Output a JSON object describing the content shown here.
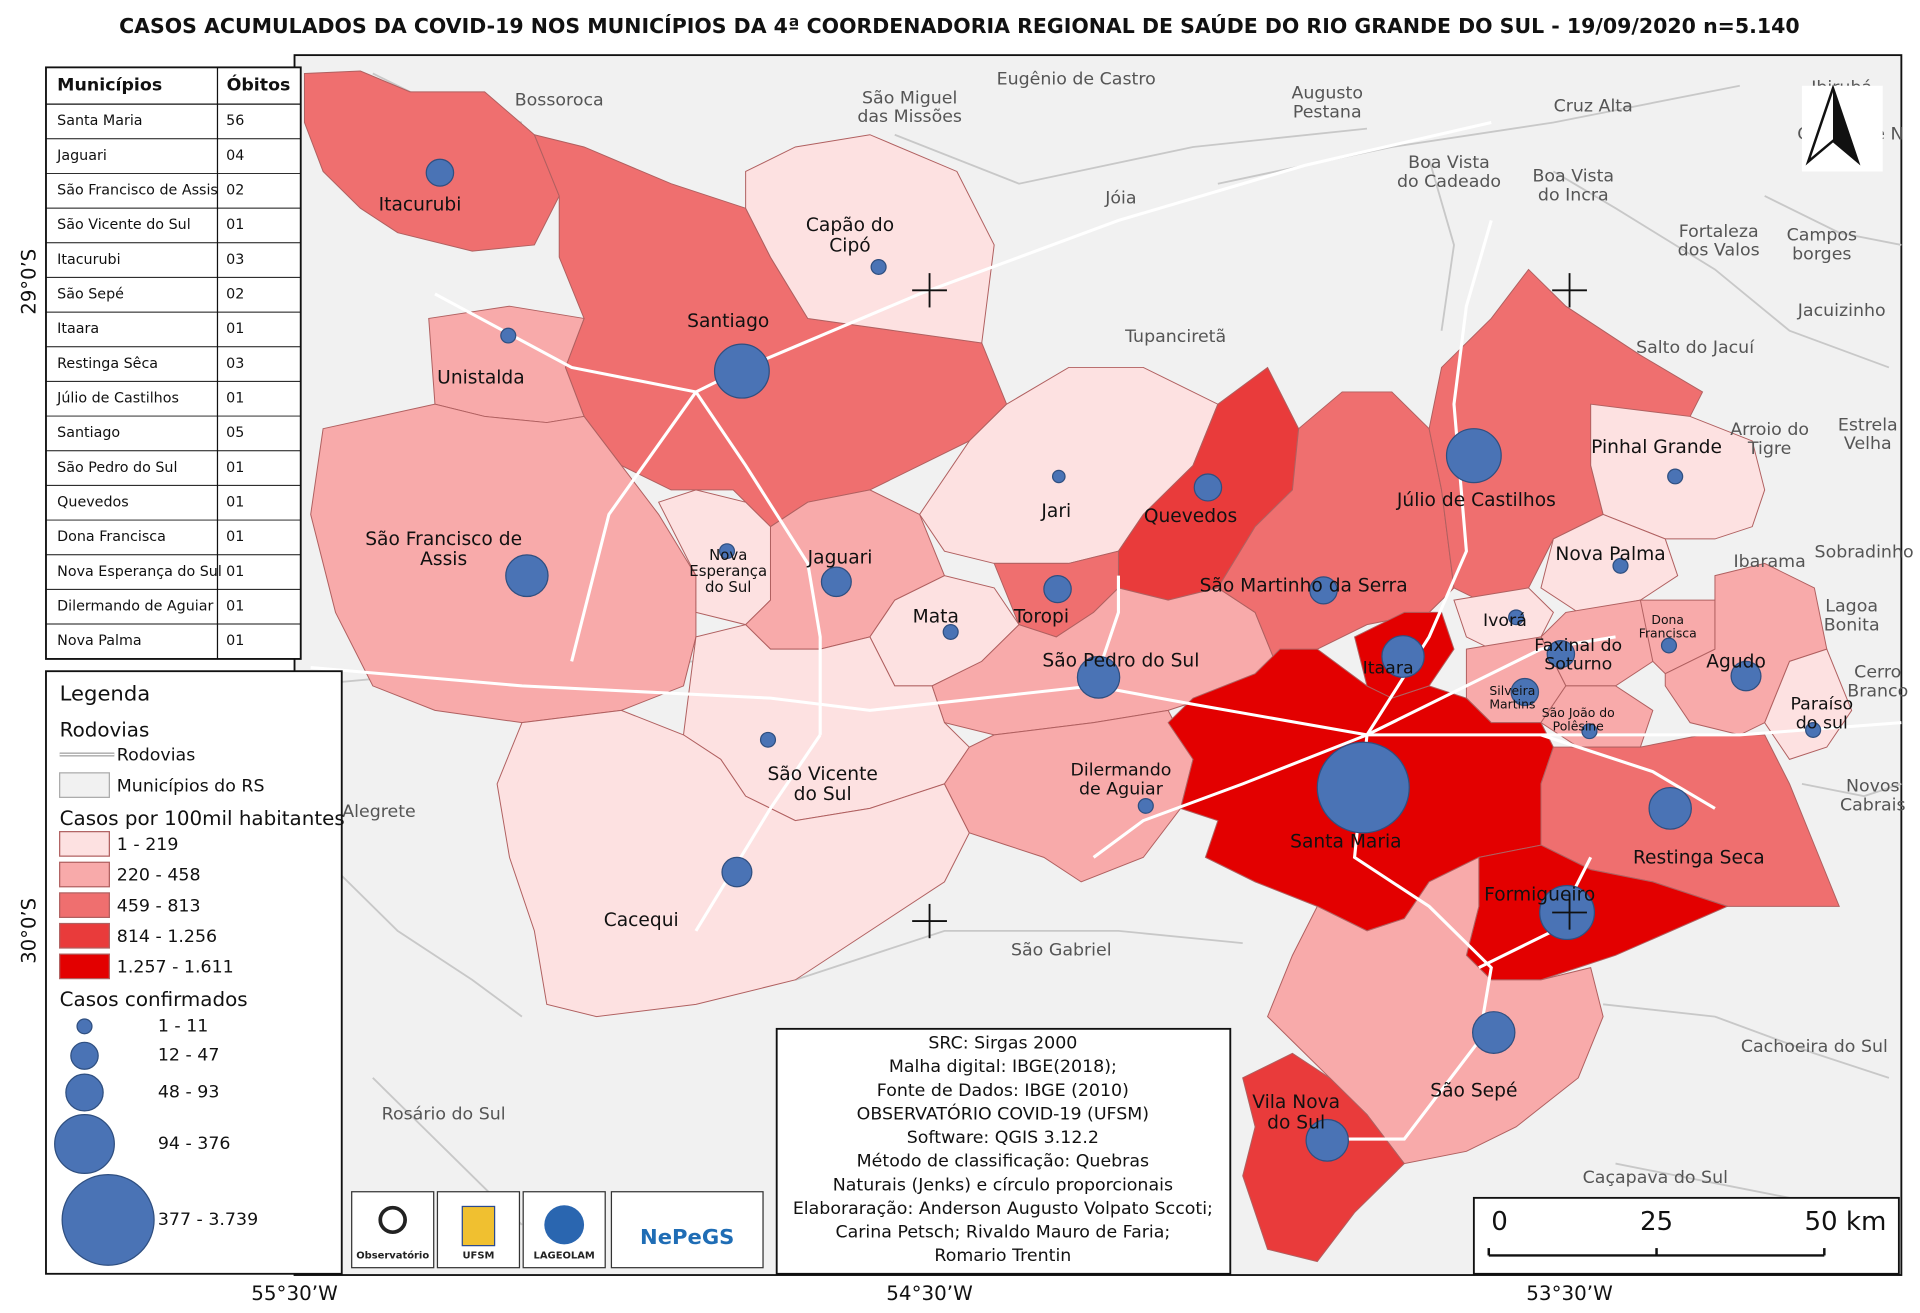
{
  "title": "CASOS ACUMULADOS DA COVID-19 NOS MUNICÍPIOS DA 4ª COORDENADORIA REGIONAL DE SAÚDE DO RIO GRANDE DO SUL - 19/09/2020 n=5.140",
  "table": {
    "header": [
      "Municípios",
      "Óbitos"
    ],
    "rows": [
      [
        "Santa Maria",
        "56"
      ],
      [
        "Jaguari",
        "04"
      ],
      [
        "São Francisco de Assis",
        "02"
      ],
      [
        "São Vicente do Sul",
        "01"
      ],
      [
        "Itacurubi",
        "03"
      ],
      [
        "São Sepé",
        "02"
      ],
      [
        "Itaara",
        "01"
      ],
      [
        "Restinga Sêca",
        "03"
      ],
      [
        "Júlio de Castilhos",
        "01"
      ],
      [
        "Santiago",
        "05"
      ],
      [
        "São Pedro do Sul",
        "01"
      ],
      [
        "Quevedos",
        "01"
      ],
      [
        "Dona Francisca",
        "01"
      ],
      [
        "Nova Esperança do Sul",
        "01"
      ],
      [
        "Dilermando de Aguiar",
        "01"
      ],
      [
        "Nova Palma",
        "01"
      ]
    ]
  },
  "legend": {
    "title": "Legenda",
    "roads_heading": "Rodovias",
    "roads": "Rodovias",
    "municipalities": "Municípios do RS",
    "rate_title": "Casos por 100mil habitantes",
    "rate_classes": [
      "1 - 219",
      "220 - 458",
      "459 - 813",
      "814 - 1.256",
      "1.257 - 1.611"
    ],
    "rate_colors": [
      "#fde1e1",
      "#f8aaaa",
      "#ef6f6f",
      "#e93b3b",
      "#e30000"
    ],
    "cases_title": "Casos confirmados",
    "case_classes": [
      "1 - 11",
      "12 - 47",
      "48 - 93",
      "94 - 376",
      "377 - 3.739"
    ],
    "circle_color": "#4a73b5"
  },
  "info": [
    "SRC: Sirgas 2000",
    "Malha digital: IBGE(2018);",
    "Fonte de Dados: IBGE (2010)",
    "OBSERVATÓRIO COVID-19 (UFSM)",
    "Software: QGIS 3.12.2",
    "Método de classificação: Quebras",
    "Naturais (Jenks) e círculo proporcionais",
    "Elaboraração: Anderson Augusto Volpato Sccoti;",
    "Carina Petsch; Rivaldo Mauro de Faria;",
    "Romario Trentin"
  ],
  "municipality_labels": [
    [
      "Itacurubi"
    ],
    [
      "Santiago"
    ],
    [
      "Capão do",
      "Cipó"
    ],
    [
      "Unistalda"
    ],
    [
      "São Francisco de",
      "Assis"
    ],
    [
      "Nova",
      "Esperança",
      "do Sul"
    ],
    [
      "Jaguari"
    ],
    [
      "Jari"
    ],
    [
      "Quevedos"
    ],
    [
      "Júlio de Castilhos"
    ],
    [
      "Pinhal Grande"
    ],
    [
      "Nova Palma"
    ],
    [
      "Mata"
    ],
    [
      "Toropi"
    ],
    [
      "São Pedro do Sul"
    ],
    [
      "São Martinho da Serra"
    ],
    [
      "Ivorá"
    ],
    [
      "Faxinal do",
      "Soturno"
    ],
    [
      "Dona",
      "Francisca"
    ],
    [
      "Agudo"
    ],
    [
      "Itaara"
    ],
    [
      "Silveira",
      "Martins"
    ],
    [
      "São João do",
      "Polêsine"
    ],
    [
      "Paraíso",
      "do sul"
    ],
    [
      "São Vicente",
      "do Sul"
    ],
    [
      "Dilermando",
      "de Aguiar"
    ],
    [
      "Santa Maria"
    ],
    [
      "Restinga Seca"
    ],
    [
      "Formigueiro"
    ],
    [
      "Cacequi"
    ],
    [
      "São Sepé"
    ],
    [
      "Vila Nova",
      "do Sul"
    ]
  ],
  "neighbor_labels": [
    [
      "Bossoroca"
    ],
    [
      "São Miguel",
      "das Missões"
    ],
    [
      "Eugênio de Castro"
    ],
    [
      "Augusto",
      "Pestana"
    ],
    [
      "Cruz Alta"
    ],
    [
      "Ibirubá"
    ],
    [
      "Boa Vista",
      "do Cadeado"
    ],
    [
      "Boa Vista",
      "do Incra"
    ],
    [
      "Jóia"
    ],
    [
      "Quinze de N"
    ],
    [
      "Fortaleza",
      "dos Valos"
    ],
    [
      "Campos",
      "borges"
    ],
    [
      "Jacuizinho"
    ],
    [
      "Salto do Jacuí"
    ],
    [
      "Arroio do",
      "Tigre"
    ],
    [
      "Estrela",
      "Velha"
    ],
    [
      "Ibarama"
    ],
    [
      "Sobradinho"
    ],
    [
      "Lagoa",
      "Bonita"
    ],
    [
      "Cerro",
      "Branco"
    ],
    [
      "Novos",
      "Cabrais"
    ],
    [
      "Tupanciretã"
    ],
    [
      "Alegrete"
    ],
    [
      "São Gabriel"
    ],
    [
      "Cachoeira do Sul"
    ],
    [
      "Rosário do Sul"
    ],
    [
      "Caçapava do Sul"
    ]
  ],
  "latitudes": [
    "29°0’S",
    "30°0’S"
  ],
  "longitudes": [
    "55°30’W",
    "54°30’W",
    "53°30’W"
  ],
  "scale": [
    "0",
    "25",
    "50 km"
  ],
  "logos": [
    "Observatório",
    "UFSM",
    "LAGEOLAM",
    "NePeGS"
  ]
}
